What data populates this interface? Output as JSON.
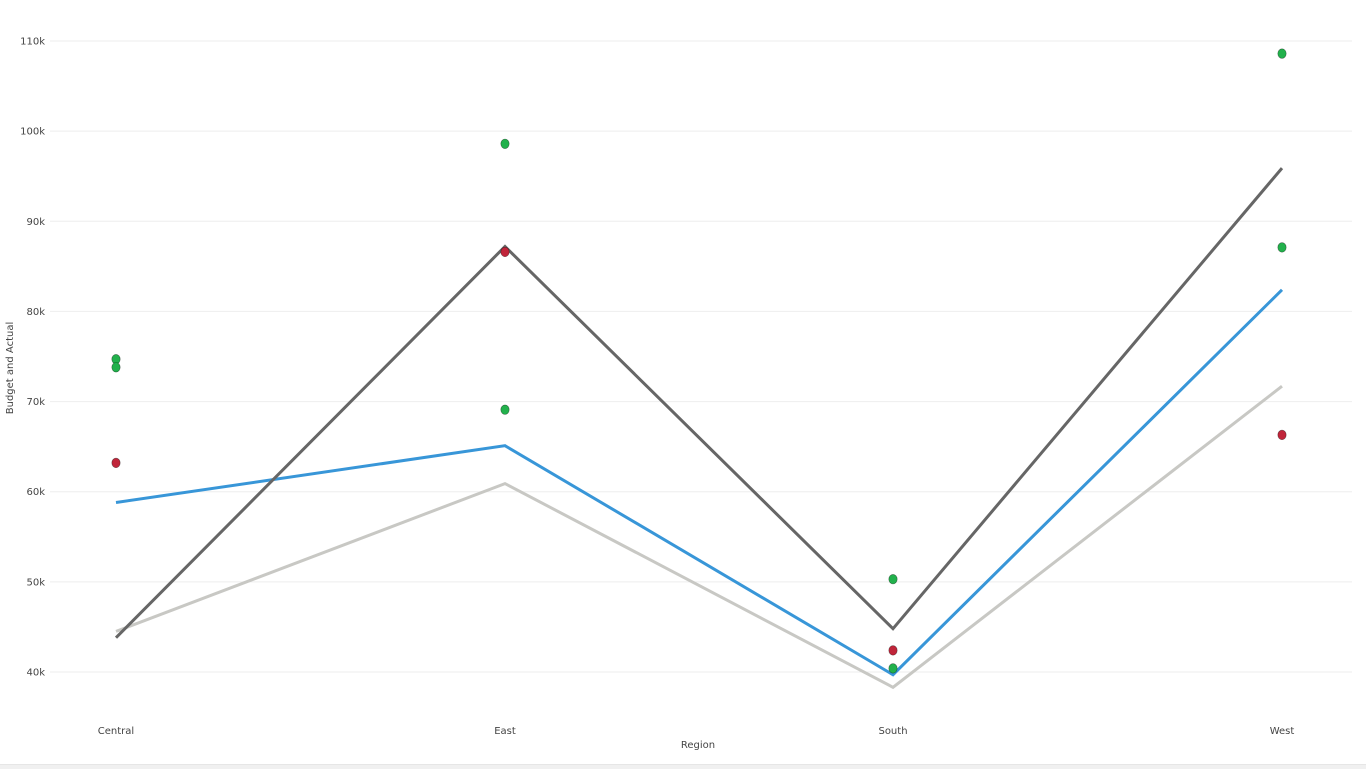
{
  "chart_data": {
    "type": "line",
    "xlabel": "Region",
    "ylabel": "Budget and Actual",
    "categories": [
      "Central",
      "East",
      "South",
      "West"
    ],
    "ylim": [
      35000,
      113000
    ],
    "y_ticks": [
      40000,
      50000,
      60000,
      70000,
      80000,
      90000,
      100000,
      110000
    ],
    "y_tick_labels": [
      "40k",
      "50k",
      "60k",
      "70k",
      "80k",
      "90k",
      "100k",
      "110k"
    ],
    "grid": true,
    "legend": "none",
    "series": [
      {
        "kind": "line",
        "color": "#666666",
        "values": [
          43800,
          87200,
          44800,
          95900
        ]
      },
      {
        "kind": "line",
        "color": "#3896d8",
        "values": [
          58800,
          65100,
          39700,
          82400
        ]
      },
      {
        "kind": "line",
        "color": "#c8c8c4",
        "values": [
          44500,
          60900,
          38300,
          71700
        ]
      },
      {
        "kind": "scatter",
        "color": "#22b14c",
        "values": [
          74700,
          98600,
          50300,
          108600
        ]
      },
      {
        "kind": "scatter",
        "color": "#22b14c",
        "values": [
          73800,
          69100,
          40400,
          87100
        ]
      },
      {
        "kind": "scatter",
        "color": "#c0253a",
        "values": [
          63200,
          86600,
          42400,
          66300
        ]
      }
    ]
  }
}
